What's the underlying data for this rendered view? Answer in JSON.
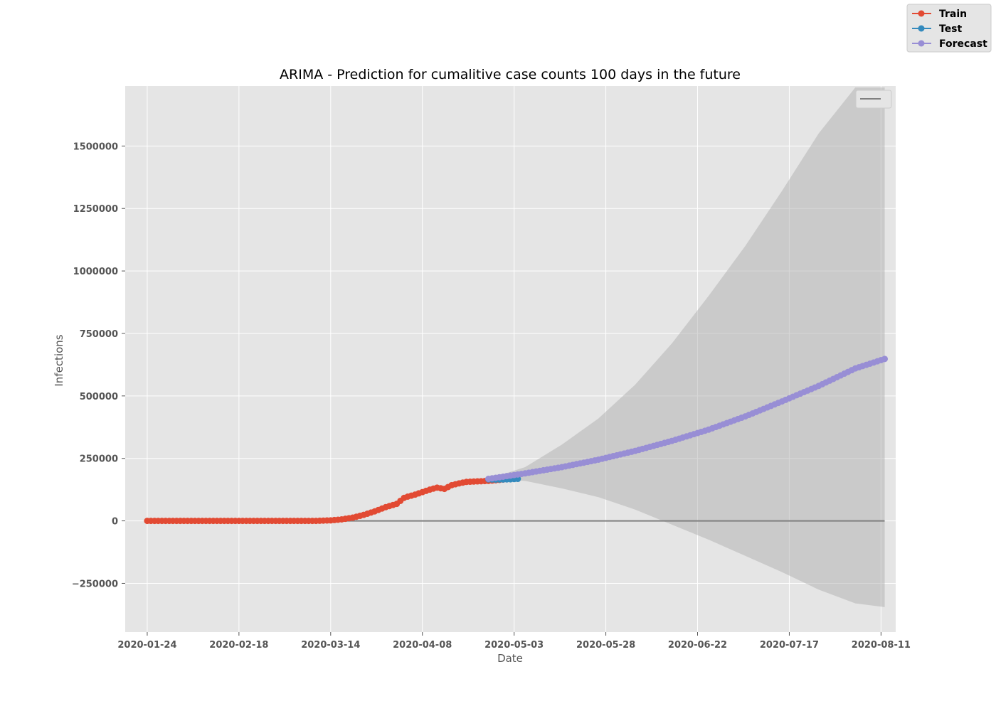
{
  "chart_data": {
    "type": "line",
    "title": "ARIMA - Prediction for cumalitive case counts 100 days in the future",
    "xlabel": "Date",
    "ylabel": "Infections",
    "xlim": [
      "2020-01-18",
      "2020-08-15"
    ],
    "ylim": [
      -445000,
      1740000
    ],
    "x_ticks": [
      "2020-01-24",
      "2020-02-18",
      "2020-03-14",
      "2020-04-08",
      "2020-05-03",
      "2020-05-28",
      "2020-06-22",
      "2020-07-17",
      "2020-08-11"
    ],
    "y_ticks": [
      -250000,
      0,
      250000,
      500000,
      750000,
      1000000,
      1250000,
      1500000
    ],
    "y_tick_labels": [
      "−250000",
      "0",
      "250000",
      "500000",
      "750000",
      "1000000",
      "1250000",
      "1500000"
    ],
    "grid": true,
    "legend_position": "outside top-right",
    "series": [
      {
        "name": "Train",
        "color": "#e24a33",
        "marker": "circle",
        "x": [
          "2020-01-24",
          "2020-02-24",
          "2020-03-10",
          "2020-03-14",
          "2020-03-17",
          "2020-03-20",
          "2020-03-23",
          "2020-03-26",
          "2020-03-29",
          "2020-04-01",
          "2020-04-03",
          "2020-04-04",
          "2020-04-06",
          "2020-04-08",
          "2020-04-10",
          "2020-04-12",
          "2020-04-14",
          "2020-04-16",
          "2020-04-18",
          "2020-04-20",
          "2020-04-23",
          "2020-04-26",
          "2020-04-29",
          "2020-05-01"
        ],
        "y": [
          0,
          0,
          0,
          2000,
          6000,
          13000,
          24000,
          38000,
          55000,
          68000,
          92000,
          97000,
          105000,
          115000,
          125000,
          133000,
          128000,
          143000,
          150000,
          156000,
          158000,
          160000,
          164000,
          167000
        ]
      },
      {
        "name": "Test",
        "color": "#348abd",
        "marker": "circle",
        "x": [
          "2020-04-26",
          "2020-04-28",
          "2020-04-30",
          "2020-05-02",
          "2020-05-04"
        ],
        "y": [
          166000,
          165000,
          165500,
          166500,
          168000
        ]
      },
      {
        "name": "Forecast",
        "color": "#988ed5",
        "marker": "circle",
        "x": [
          "2020-04-26",
          "2020-05-06",
          "2020-05-16",
          "2020-05-26",
          "2020-06-05",
          "2020-06-15",
          "2020-06-25",
          "2020-07-05",
          "2020-07-15",
          "2020-07-25",
          "2020-08-04",
          "2020-08-12"
        ],
        "y": [
          168000,
          190000,
          215000,
          245000,
          280000,
          320000,
          365000,
          418000,
          478000,
          540000,
          610000,
          648000
        ]
      }
    ],
    "confidence_band": {
      "color": "#b0b0b0",
      "x": [
        "2020-04-26",
        "2020-05-06",
        "2020-05-16",
        "2020-05-26",
        "2020-06-05",
        "2020-06-15",
        "2020-06-25",
        "2020-07-05",
        "2020-07-15",
        "2020-07-25",
        "2020-08-04",
        "2020-08-12"
      ],
      "upper": [
        168000,
        215000,
        305000,
        410000,
        545000,
        710000,
        900000,
        1100000,
        1320000,
        1550000,
        1800000,
        1995000
      ],
      "lower": [
        168000,
        160000,
        130000,
        95000,
        45000,
        -15000,
        -75000,
        -140000,
        -205000,
        -275000,
        -330000,
        -345000
      ]
    },
    "zero_line": {
      "color": "#808080",
      "x": [
        "2020-01-24",
        "2020-08-12"
      ],
      "y": 0
    },
    "inner_legend": {
      "position": "upper right",
      "line_color": "#808080"
    }
  }
}
